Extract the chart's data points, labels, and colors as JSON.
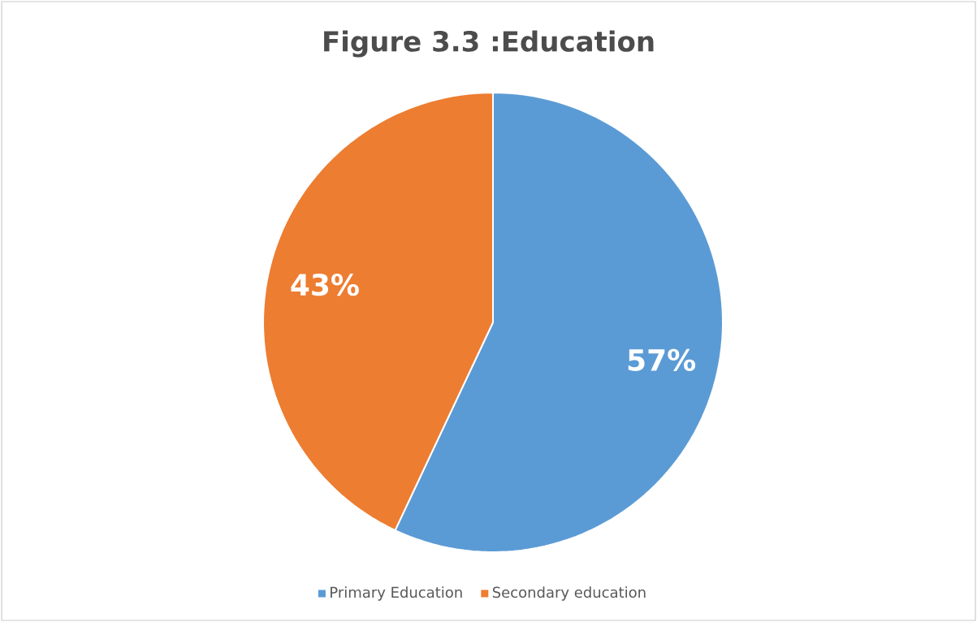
{
  "chart_data": {
    "type": "pie",
    "title": "Figure 3.3 :Education",
    "categories": [
      "Primary Education",
      "Secondary education"
    ],
    "values": [
      57,
      43
    ],
    "colors": [
      "#5b9bd5",
      "#ed7d31"
    ],
    "value_labels": [
      "57%",
      "43%"
    ],
    "legend": "bottom"
  }
}
